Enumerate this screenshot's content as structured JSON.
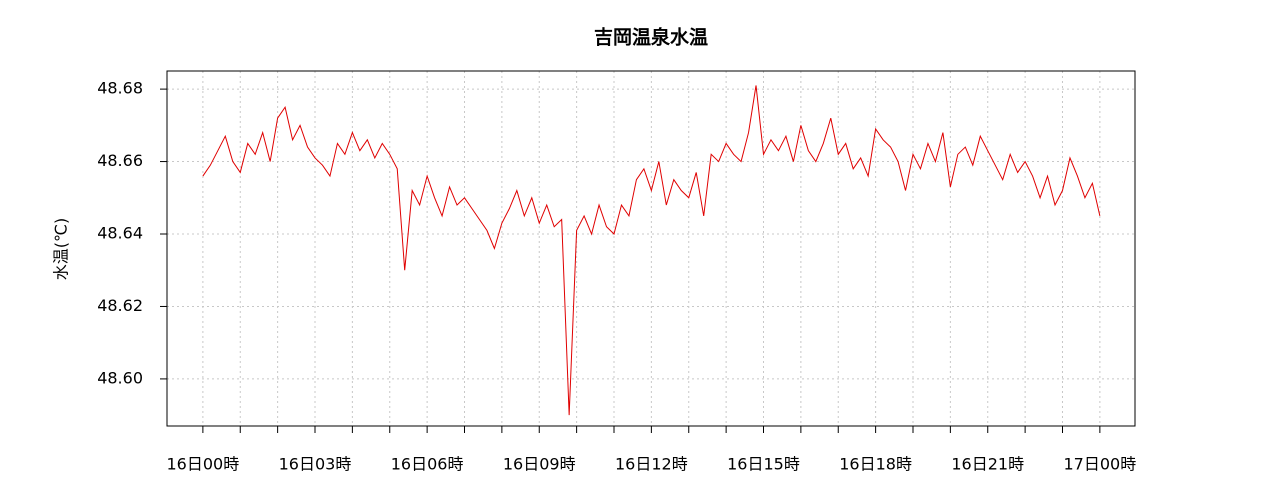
{
  "chart_data": {
    "type": "line",
    "title": "吉岡温泉水温",
    "y_label": "水温(℃)",
    "x": [
      0,
      0.2,
      0.4,
      0.6,
      0.8,
      1,
      1.2,
      1.4,
      1.6,
      1.8,
      2,
      2.2,
      2.4,
      2.6,
      2.8,
      3,
      3.2,
      3.4,
      3.6,
      3.8,
      4,
      4.2,
      4.4,
      4.6,
      4.8,
      5,
      5.2,
      5.4,
      5.6,
      5.8,
      6,
      6.2,
      6.4,
      6.6,
      6.8,
      7,
      7.2,
      7.4,
      7.6,
      7.8,
      8,
      8.2,
      8.4,
      8.6,
      8.8,
      9,
      9.2,
      9.4,
      9.6,
      9.8,
      10,
      10.2,
      10.4,
      10.6,
      10.8,
      11,
      11.2,
      11.4,
      11.6,
      11.8,
      12,
      12.2,
      12.4,
      12.6,
      12.8,
      13,
      13.2,
      13.4,
      13.6,
      13.8,
      14,
      14.2,
      14.4,
      14.6,
      14.8,
      15,
      15.2,
      15.4,
      15.6,
      15.8,
      16,
      16.2,
      16.4,
      16.6,
      16.8,
      17,
      17.2,
      17.4,
      17.6,
      17.8,
      18,
      18.2,
      18.4,
      18.6,
      18.8,
      19,
      19.2,
      19.4,
      19.6,
      19.8,
      20,
      20.2,
      20.4,
      20.6,
      20.8,
      21,
      21.2,
      21.4,
      21.6,
      21.8,
      22,
      22.2,
      22.4,
      22.6,
      22.8,
      23,
      23.2,
      23.4,
      23.6,
      23.8,
      24
    ],
    "series": [
      {
        "color": "#e00000",
        "values": [
          48.656,
          48.659,
          48.663,
          48.667,
          48.66,
          48.657,
          48.665,
          48.662,
          48.668,
          48.66,
          48.672,
          48.675,
          48.666,
          48.67,
          48.664,
          48.661,
          48.659,
          48.656,
          48.665,
          48.662,
          48.668,
          48.663,
          48.666,
          48.661,
          48.665,
          48.662,
          48.658,
          48.63,
          48.652,
          48.648,
          48.656,
          48.65,
          48.645,
          48.653,
          48.648,
          48.65,
          48.647,
          48.644,
          48.641,
          48.636,
          48.643,
          48.647,
          48.652,
          48.645,
          48.65,
          48.643,
          48.648,
          48.642,
          48.644,
          48.59,
          48.641,
          48.645,
          48.64,
          48.648,
          48.642,
          48.64,
          48.648,
          48.645,
          48.655,
          48.658,
          48.652,
          48.66,
          48.648,
          48.655,
          48.652,
          48.65,
          48.657,
          48.645,
          48.662,
          48.66,
          48.665,
          48.662,
          48.66,
          48.668,
          48.681,
          48.662,
          48.666,
          48.663,
          48.667,
          48.66,
          48.67,
          48.663,
          48.66,
          48.665,
          48.672,
          48.662,
          48.665,
          48.658,
          48.661,
          48.656,
          48.669,
          48.666,
          48.664,
          48.66,
          48.652,
          48.662,
          48.658,
          48.665,
          48.66,
          48.668,
          48.653,
          48.662,
          48.664,
          48.659,
          48.667,
          48.663,
          48.659,
          48.655,
          48.662,
          48.657,
          48.66,
          48.656,
          48.65,
          48.656,
          48.648,
          48.652,
          48.661,
          48.656,
          48.65,
          48.654,
          48.645
        ]
      }
    ],
    "xlim": [
      -0.96,
      24.94
    ],
    "xticks": [
      {
        "value": 0,
        "label": "16日00時"
      },
      {
        "value": 3,
        "label": "16日03時"
      },
      {
        "value": 6,
        "label": "16日06時"
      },
      {
        "value": 9,
        "label": "16日09時"
      },
      {
        "value": 12,
        "label": "16日12時"
      },
      {
        "value": 15,
        "label": "16日15時"
      },
      {
        "value": 18,
        "label": "16日18時"
      },
      {
        "value": 21,
        "label": "16日21時"
      },
      {
        "value": 24,
        "label": "17日00時"
      }
    ],
    "xminor_ticks": [
      1,
      2,
      4,
      5,
      7,
      8,
      10,
      11,
      13,
      14,
      16,
      17,
      19,
      20,
      22,
      23
    ],
    "ylim": [
      48.587,
      48.685
    ],
    "yticks": [
      {
        "value": 48.6,
        "label": "48.60"
      },
      {
        "value": 48.62,
        "label": "48.62"
      },
      {
        "value": 48.64,
        "label": "48.64"
      },
      {
        "value": 48.66,
        "label": "48.66"
      },
      {
        "value": 48.68,
        "label": "48.68"
      }
    ],
    "grid": true
  }
}
